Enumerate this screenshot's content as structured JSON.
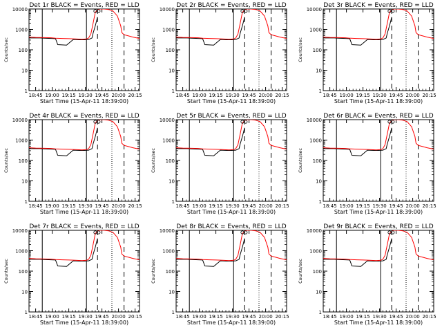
{
  "chart_data": {
    "type": "line",
    "layout": "3x3 grid",
    "xlabel": "Start Time (15-Apr-11 18:39:00)",
    "ylabel": "Counts/sec",
    "y_scale": "log",
    "ylim": [
      1,
      10000
    ],
    "y_ticks": [
      "1",
      "10",
      "100",
      "1000",
      "10000"
    ],
    "x_ticks": [
      "18:45",
      "19:00",
      "19:15",
      "19:30",
      "19:45",
      "20:00",
      "20:15"
    ],
    "xlim_minutes_after_start": [
      0,
      100
    ],
    "series_colors": {
      "events": "#000000",
      "lld": "#ff0000"
    },
    "vertical_markers": {
      "solid_minutes_after_start": [
        12,
        52
      ],
      "dashed_minutes_after_start": [
        62,
        86
      ],
      "dotted_minutes_after_start": [
        75
      ]
    },
    "panels": [
      {
        "title": "Det 1r BLACK = Events, RED = LLD"
      },
      {
        "title": "Det 2r BLACK = Events, RED = LLD"
      },
      {
        "title": "Det 3r BLACK = Events, RED = LLD"
      },
      {
        "title": "Det 4r BLACK = Events, RED = LLD"
      },
      {
        "title": "Det 5r BLACK = Events, RED = LLD"
      },
      {
        "title": "Det 6r BLACK = Events, RED = LLD"
      },
      {
        "title": "Det 7r BLACK = Events, RED = LLD"
      },
      {
        "title": "Det 8r BLACK = Events, RED = LLD"
      },
      {
        "title": "Det 9r BLACK = Events, RED = LLD"
      }
    ],
    "series": [
      {
        "key": "events",
        "x_minutes_after_start": [
          0,
          10,
          14,
          20,
          24,
          26,
          34,
          40,
          46,
          50,
          54,
          57,
          58,
          60,
          62
        ],
        "y": [
          380,
          380,
          370,
          360,
          350,
          180,
          170,
          320,
          310,
          310,
          320,
          380,
          650,
          1500,
          4000
        ]
      },
      {
        "key": "lld",
        "x_minutes_after_start": [
          0,
          6,
          10,
          14,
          20,
          24,
          30,
          36,
          42,
          48,
          52,
          54,
          56,
          58,
          60,
          63,
          68,
          72,
          76,
          80,
          83,
          84,
          86,
          90,
          94,
          100
        ],
        "y": [
          420,
          405,
          400,
          395,
          390,
          370,
          360,
          350,
          340,
          330,
          340,
          380,
          600,
          2000,
          7000,
          10000,
          10000,
          9500,
          8000,
          4500,
          1500,
          700,
          550,
          480,
          420,
          360
        ]
      }
    ]
  }
}
